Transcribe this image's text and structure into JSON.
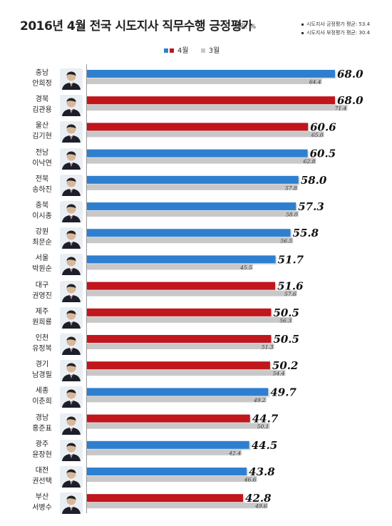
{
  "title": "2016년 4월 전국 시도지사 직무수행 긍정평가",
  "unit": "단위: %",
  "notes": [
    "시도지사 긍정평가 평균: 53.4",
    "시도지사 부정평가 평균: 30.4"
  ],
  "colors": {
    "blue": "#2f7fd0",
    "red": "#c0161c",
    "gray": "#c8c8c8",
    "legend_red": "#c0161c",
    "legend_blue": "#2f7fd0"
  },
  "legend": [
    "4월",
    "3월"
  ],
  "icons": [
    "avatar-icon"
  ],
  "chart_data": {
    "type": "bar",
    "orientation": "horizontal",
    "categories": [
      "충남 안희정",
      "경북 김관용",
      "울산 김기현",
      "전남 이낙연",
      "전북 송하진",
      "충북 이시종",
      "강원 최문순",
      "서울 박원순",
      "대구 권영진",
      "제주 원희룡",
      "인천 유정복",
      "경기 남경필",
      "세종 이춘희",
      "경남 홍준표",
      "광주 윤장현",
      "대전 권선택",
      "부산 서병수"
    ],
    "regions": [
      "충남",
      "경북",
      "울산",
      "전남",
      "전북",
      "충북",
      "강원",
      "서울",
      "대구",
      "제주",
      "인천",
      "경기",
      "세종",
      "경남",
      "광주",
      "대전",
      "부산"
    ],
    "names": [
      "안희정",
      "김관용",
      "김기현",
      "이낙연",
      "송하진",
      "이시종",
      "최문순",
      "박원순",
      "권영진",
      "원희룡",
      "유정복",
      "남경필",
      "이춘희",
      "홍준표",
      "윤장현",
      "권선택",
      "서병수"
    ],
    "series": [
      {
        "name": "4월",
        "values": [
          68.0,
          68.0,
          60.6,
          60.5,
          58.0,
          57.3,
          55.8,
          51.7,
          51.6,
          50.5,
          50.5,
          50.2,
          49.7,
          44.7,
          44.5,
          43.8,
          42.8
        ]
      },
      {
        "name": "3월",
        "values": [
          64.4,
          71.4,
          65.0,
          62.8,
          57.8,
          58.0,
          56.5,
          45.5,
          57.6,
          56.3,
          51.3,
          54.4,
          49.2,
          50.1,
          42.4,
          46.6,
          49.6
        ]
      }
    ],
    "labels_apr": [
      "68.0",
      "68.0",
      "60.6",
      "60.5",
      "58.0",
      "57.3",
      "55.8",
      "51.7",
      "51.6",
      "50.5",
      "50.5",
      "50.2",
      "49.7",
      "44.7",
      "44.5",
      "43.8",
      "42.8"
    ],
    "labels_mar": [
      "64.4",
      "71.4",
      "65.0",
      "62.8",
      "57.8",
      "58.0",
      "56.5",
      "45.5",
      "57.6",
      "56.3",
      "51.3",
      "54.4",
      "49.2",
      "50.1",
      "42.4",
      "46.6",
      "49.6"
    ],
    "party_color": [
      "blue",
      "red",
      "red",
      "blue",
      "blue",
      "blue",
      "blue",
      "blue",
      "red",
      "red",
      "red",
      "red",
      "blue",
      "red",
      "blue",
      "blue",
      "red"
    ],
    "xlim": [
      0,
      75
    ],
    "grid": false
  }
}
